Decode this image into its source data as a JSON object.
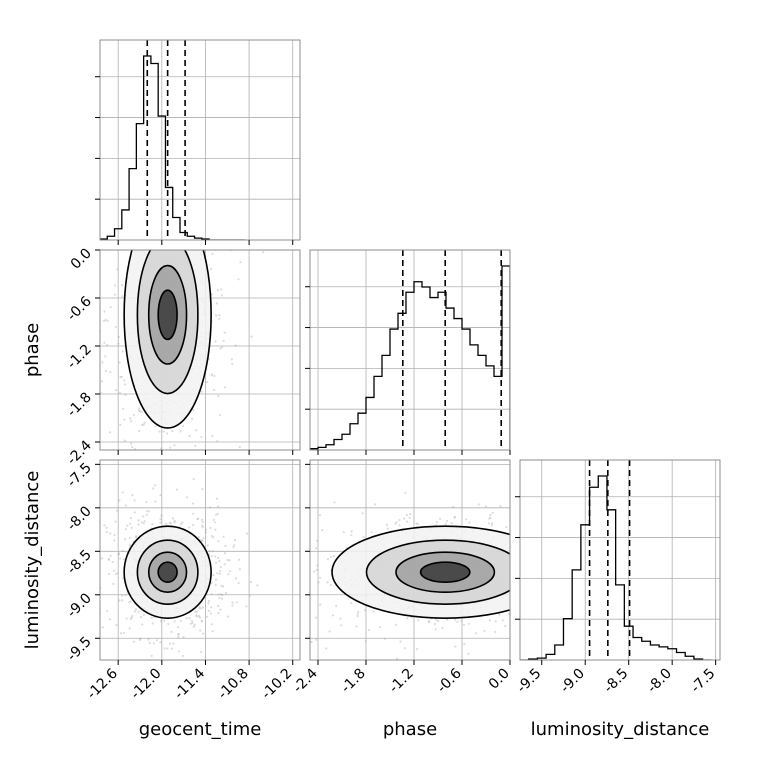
{
  "chart_data": {
    "type": "corner",
    "parameters": [
      {
        "name": "geocent_time",
        "label": "geocent_time",
        "range": [
          -12.85,
          -10.1
        ],
        "ticks": [
          "-12.6",
          "-12.0",
          "-11.4",
          "-10.8",
          "-10.2"
        ],
        "tick_values": [
          -12.6,
          -12.0,
          -11.4,
          -10.8,
          -10.2
        ],
        "quantiles": [
          -12.2,
          -11.92,
          -11.68
        ],
        "hist": {
          "bin_edges": [
            -12.85,
            -12.75,
            -12.65,
            -12.55,
            -12.45,
            -12.35,
            -12.25,
            -12.15,
            -12.05,
            -11.95,
            -11.85,
            -11.75,
            -11.65,
            -11.55,
            -11.45,
            -11.35,
            -11.25,
            -11.15,
            -11.05,
            -10.95,
            -10.85
          ],
          "counts": [
            0.5,
            2,
            6,
            16,
            38,
            62,
            98,
            94,
            66,
            28,
            12,
            4,
            2,
            1,
            0.5,
            0,
            0,
            0,
            0,
            0
          ]
        }
      },
      {
        "name": "phase",
        "label": "phase",
        "range": [
          -2.5,
          0.0
        ],
        "ticks": [
          "-2.4",
          "-1.8",
          "-1.2",
          "-0.6",
          "0.0"
        ],
        "tick_values": [
          -2.4,
          -1.8,
          -1.2,
          -0.6,
          0.0
        ],
        "quantiles": [
          -1.34,
          -0.81,
          -0.11
        ],
        "hist": {
          "bin_edges": [
            -2.5,
            -2.4,
            -2.3,
            -2.2,
            -2.1,
            -2.0,
            -1.9,
            -1.8,
            -1.7,
            -1.6,
            -1.5,
            -1.4,
            -1.3,
            -1.2,
            -1.1,
            -1.0,
            -0.9,
            -0.8,
            -0.7,
            -0.6,
            -0.5,
            -0.4,
            -0.3,
            -0.2,
            -0.1,
            0.0
          ],
          "counts": [
            0.5,
            1,
            2,
            4,
            6,
            10,
            14,
            20,
            28,
            36,
            46,
            52,
            60,
            64,
            62,
            58,
            60,
            54,
            50,
            46,
            40,
            36,
            32,
            28,
            70
          ]
        }
      },
      {
        "name": "luminosity_distance",
        "label": "luminosity_distance",
        "range": [
          -9.75,
          -7.45
        ],
        "ticks": [
          "-9.5",
          "-9.0",
          "-8.5",
          "-8.0",
          "-7.5"
        ],
        "tick_values": [
          -9.5,
          -9.0,
          -8.5,
          -8.0,
          -7.5
        ],
        "quantiles": [
          -8.95,
          -8.74,
          -8.49
        ],
        "hist": {
          "bin_edges": [
            -9.75,
            -9.65,
            -9.55,
            -9.45,
            -9.35,
            -9.25,
            -9.15,
            -9.05,
            -8.95,
            -8.85,
            -8.75,
            -8.65,
            -8.55,
            -8.45,
            -8.35,
            -8.25,
            -8.15,
            -8.05,
            -7.95,
            -7.85,
            -7.75,
            -7.65,
            -7.55
          ],
          "counts": [
            0,
            0.5,
            1,
            3,
            8,
            22,
            48,
            72,
            92,
            98,
            80,
            40,
            18,
            12,
            10,
            8,
            7,
            6,
            4,
            2,
            0.5,
            0
          ]
        }
      }
    ],
    "contour_levels": 4,
    "grid": true,
    "histogram_y_ticklabels": false
  }
}
